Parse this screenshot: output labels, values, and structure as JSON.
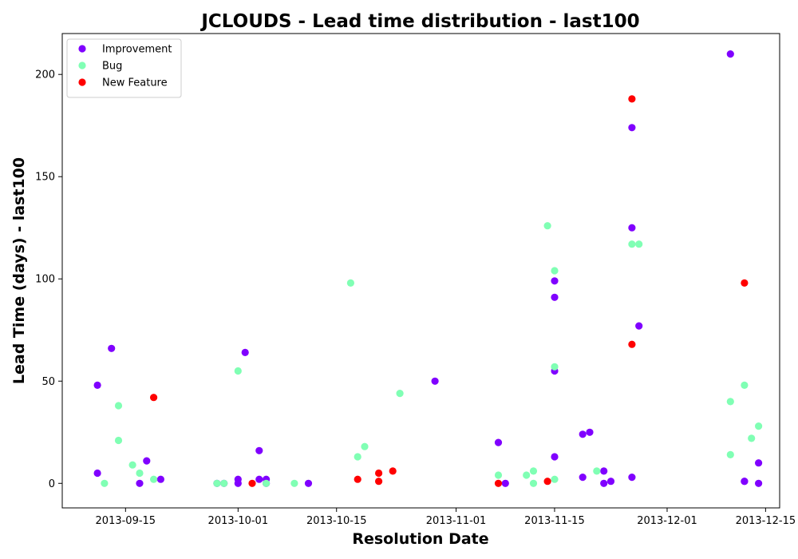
{
  "chart_data": {
    "type": "scatter",
    "title": "JCLOUDS - Lead time distribution - last100",
    "xlabel": "Resolution Date",
    "ylabel": "Lead Time (days) - last100",
    "x_type": "date",
    "xlim": [
      "2013-09-06",
      "2013-12-17"
    ],
    "ylim": [
      -12,
      220
    ],
    "x_ticks": [
      "2013-09-15",
      "2013-10-01",
      "2013-10-15",
      "2013-11-01",
      "2013-11-15",
      "2013-12-01",
      "2013-12-15"
    ],
    "y_ticks": [
      0,
      50,
      100,
      150,
      200
    ],
    "grid": false,
    "legend": {
      "position": "top-left"
    },
    "series": [
      {
        "name": "Improvement",
        "color": "#8000ff",
        "points": [
          {
            "x": "2013-09-11",
            "y": 48
          },
          {
            "x": "2013-09-11",
            "y": 5
          },
          {
            "x": "2013-09-13",
            "y": 66
          },
          {
            "x": "2013-09-17",
            "y": 0
          },
          {
            "x": "2013-09-18",
            "y": 11
          },
          {
            "x": "2013-09-20",
            "y": 2
          },
          {
            "x": "2013-09-28",
            "y": 0
          },
          {
            "x": "2013-09-29",
            "y": 0
          },
          {
            "x": "2013-10-01",
            "y": 2
          },
          {
            "x": "2013-10-01",
            "y": 0
          },
          {
            "x": "2013-10-02",
            "y": 64
          },
          {
            "x": "2013-10-04",
            "y": 16
          },
          {
            "x": "2013-10-04",
            "y": 2
          },
          {
            "x": "2013-10-05",
            "y": 2
          },
          {
            "x": "2013-10-05",
            "y": 0
          },
          {
            "x": "2013-10-11",
            "y": 0
          },
          {
            "x": "2013-10-29",
            "y": 50
          },
          {
            "x": "2013-11-07",
            "y": 20
          },
          {
            "x": "2013-11-08",
            "y": 0
          },
          {
            "x": "2013-11-15",
            "y": 55
          },
          {
            "x": "2013-11-15",
            "y": 99
          },
          {
            "x": "2013-11-15",
            "y": 91
          },
          {
            "x": "2013-11-15",
            "y": 13
          },
          {
            "x": "2013-11-19",
            "y": 24
          },
          {
            "x": "2013-11-19",
            "y": 3
          },
          {
            "x": "2013-11-20",
            "y": 25
          },
          {
            "x": "2013-11-22",
            "y": 6
          },
          {
            "x": "2013-11-22",
            "y": 0
          },
          {
            "x": "2013-11-23",
            "y": 1
          },
          {
            "x": "2013-11-26",
            "y": 174
          },
          {
            "x": "2013-11-26",
            "y": 125
          },
          {
            "x": "2013-11-26",
            "y": 3
          },
          {
            "x": "2013-11-27",
            "y": 77
          },
          {
            "x": "2013-12-10",
            "y": 210
          },
          {
            "x": "2013-12-12",
            "y": 1
          },
          {
            "x": "2013-12-12",
            "y": 1
          },
          {
            "x": "2013-12-14",
            "y": 0
          },
          {
            "x": "2013-12-14",
            "y": 10
          }
        ]
      },
      {
        "name": "Bug",
        "color": "#80ffb4",
        "points": [
          {
            "x": "2013-09-12",
            "y": 0
          },
          {
            "x": "2013-09-14",
            "y": 38
          },
          {
            "x": "2013-09-14",
            "y": 21
          },
          {
            "x": "2013-09-16",
            "y": 9
          },
          {
            "x": "2013-09-17",
            "y": 5
          },
          {
            "x": "2013-09-19",
            "y": 2
          },
          {
            "x": "2013-09-28",
            "y": 0
          },
          {
            "x": "2013-09-29",
            "y": 0
          },
          {
            "x": "2013-10-01",
            "y": 55
          },
          {
            "x": "2013-10-05",
            "y": 0
          },
          {
            "x": "2013-10-09",
            "y": 0
          },
          {
            "x": "2013-10-17",
            "y": 98
          },
          {
            "x": "2013-10-18",
            "y": 13
          },
          {
            "x": "2013-10-19",
            "y": 18
          },
          {
            "x": "2013-10-24",
            "y": 44
          },
          {
            "x": "2013-11-07",
            "y": 4
          },
          {
            "x": "2013-11-11",
            "y": 4
          },
          {
            "x": "2013-11-12",
            "y": 6
          },
          {
            "x": "2013-11-12",
            "y": 0
          },
          {
            "x": "2013-11-14",
            "y": 126
          },
          {
            "x": "2013-11-15",
            "y": 104
          },
          {
            "x": "2013-11-15",
            "y": 57
          },
          {
            "x": "2013-11-15",
            "y": 2
          },
          {
            "x": "2013-11-21",
            "y": 6
          },
          {
            "x": "2013-11-26",
            "y": 117
          },
          {
            "x": "2013-11-27",
            "y": 117
          },
          {
            "x": "2013-12-10",
            "y": 40
          },
          {
            "x": "2013-12-10",
            "y": 14
          },
          {
            "x": "2013-12-12",
            "y": 48
          },
          {
            "x": "2013-12-13",
            "y": 22
          },
          {
            "x": "2013-12-14",
            "y": 28
          }
        ]
      },
      {
        "name": "New Feature",
        "color": "#ff0000",
        "points": [
          {
            "x": "2013-09-19",
            "y": 42
          },
          {
            "x": "2013-10-03",
            "y": 0
          },
          {
            "x": "2013-10-18",
            "y": 2
          },
          {
            "x": "2013-10-21",
            "y": 5
          },
          {
            "x": "2013-10-21",
            "y": 1
          },
          {
            "x": "2013-10-23",
            "y": 6
          },
          {
            "x": "2013-11-07",
            "y": 0
          },
          {
            "x": "2013-11-14",
            "y": 1
          },
          {
            "x": "2013-11-26",
            "y": 188
          },
          {
            "x": "2013-11-26",
            "y": 68
          },
          {
            "x": "2013-12-12",
            "y": 98
          }
        ]
      }
    ]
  }
}
